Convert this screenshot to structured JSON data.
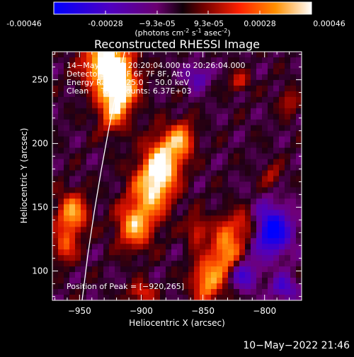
{
  "colorbar": {
    "ticks": [
      "-0.00046",
      "-0.00028",
      "−9.3e-05",
      "9.3e-05",
      "0.00028",
      "0.00046"
    ],
    "units_main": "(photons cm",
    "units_exp1": "-2",
    "units_mid": " s",
    "units_exp2": "-1",
    "units_end": " asec",
    "units_exp3": "-2",
    "units_close": ")",
    "colors": [
      "#0000ff",
      "#7a00a8",
      "#200010",
      "#8a0000",
      "#ff3000",
      "#ff9a00",
      "#ffffff"
    ]
  },
  "chart_data": {
    "type": "heatmap",
    "title": "Reconstructed RHESSI Image",
    "xlabel": "Heliocentric X (arcsec)",
    "ylabel": "Heliocentric Y (arcsec)",
    "xlim": [
      -972,
      -770
    ],
    "ylim": [
      77,
      272
    ],
    "xticks": [
      -950,
      -900,
      -850,
      -800
    ],
    "yticks": [
      100,
      150,
      200,
      250
    ],
    "xtick_labels": [
      "−950",
      "−900",
      "−850",
      "−800"
    ],
    "ytick_labels": [
      "100",
      "150",
      "200",
      "250"
    ],
    "annotations": [
      "14−May−2013 20:20:04.000 to 20:26:04.000",
      "Detectors: 3F 5F 6F 7F 8F, Att 0",
      "Energy Range: 25.0 − 50.0 keV",
      "Clean     Total counts: 6.37E+03",
      "Position of Peak = [−920,265]"
    ],
    "peak": [
      -920,
      265
    ]
  },
  "footer": {
    "timestamp": "10−May−2022 21:46"
  }
}
